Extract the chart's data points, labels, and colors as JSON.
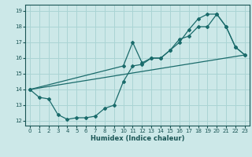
{
  "xlabel": "Humidex (Indice chaleur)",
  "bg_color": "#cce8e8",
  "line_color": "#1a6b6b",
  "grid_color": "#aad4d4",
  "xlim": [
    -0.5,
    23.5
  ],
  "ylim": [
    11.7,
    19.4
  ],
  "xticks": [
    0,
    1,
    2,
    3,
    4,
    5,
    6,
    7,
    8,
    9,
    10,
    11,
    12,
    13,
    14,
    15,
    16,
    17,
    18,
    19,
    20,
    21,
    22,
    23
  ],
  "yticks": [
    12,
    13,
    14,
    15,
    16,
    17,
    18,
    19
  ],
  "line1_x": [
    0,
    1,
    2,
    3,
    4,
    5,
    6,
    7,
    8,
    9,
    10,
    11,
    12,
    13,
    14,
    15,
    16,
    17,
    18,
    19,
    20,
    21,
    22,
    23
  ],
  "line1_y": [
    14.0,
    13.5,
    13.4,
    12.4,
    12.1,
    12.2,
    12.2,
    12.3,
    12.8,
    13.0,
    14.5,
    15.5,
    15.6,
    16.0,
    16.0,
    16.5,
    17.2,
    17.4,
    18.0,
    18.0,
    18.8,
    18.0,
    16.7,
    16.2
  ],
  "line2_x": [
    0,
    10,
    11,
    12,
    13,
    14,
    15,
    16,
    17,
    18,
    19,
    20,
    21,
    22,
    23
  ],
  "line2_y": [
    14.0,
    15.5,
    17.0,
    15.7,
    16.0,
    16.0,
    16.5,
    17.0,
    17.8,
    18.5,
    18.8,
    18.8,
    18.0,
    16.7,
    16.2
  ],
  "line3_x": [
    0,
    23
  ],
  "line3_y": [
    14.0,
    16.2
  ]
}
